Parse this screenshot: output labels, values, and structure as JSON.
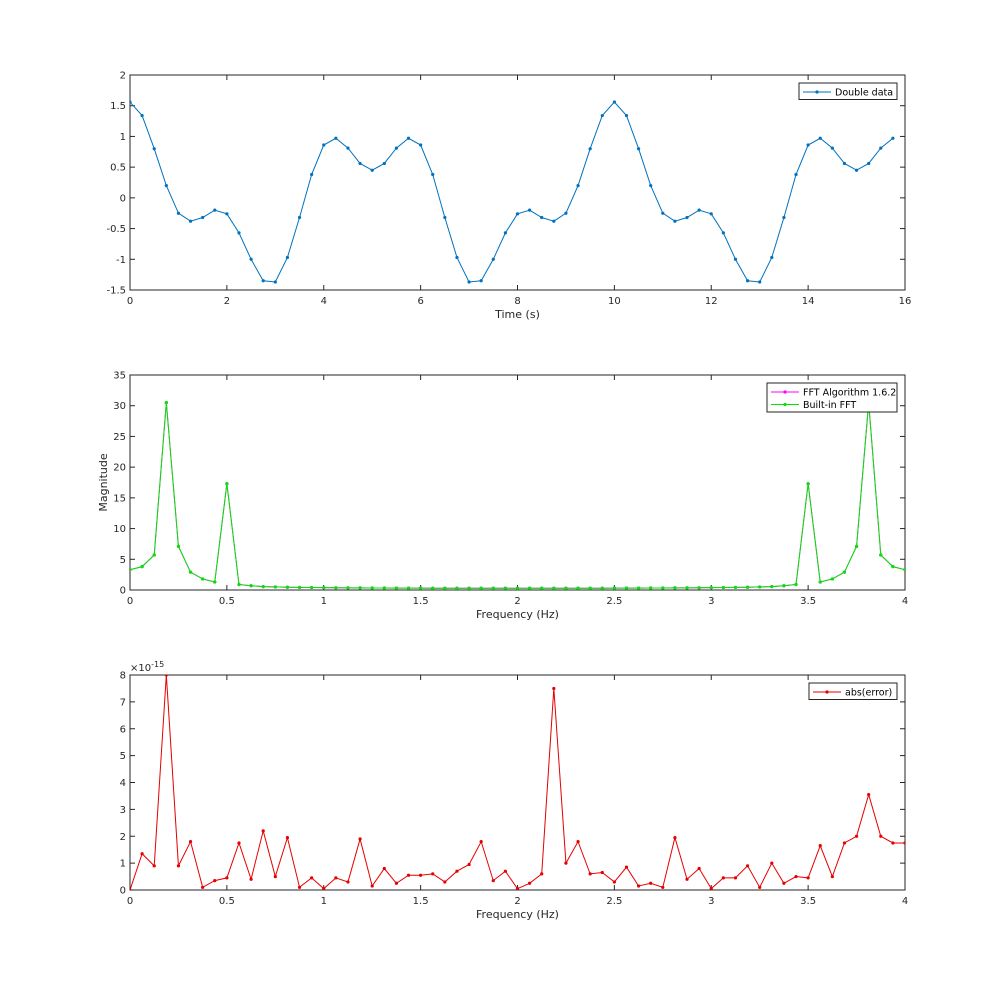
{
  "chart_data": [
    {
      "type": "line",
      "xlabel": "Time (s)",
      "ylabel": "",
      "xlim": [
        0,
        16
      ],
      "ylim": [
        -1.5,
        2
      ],
      "xticks": [
        0,
        2,
        4,
        6,
        8,
        10,
        12,
        14,
        16
      ],
      "xtick_labels": [
        "0",
        "2",
        "4",
        "6",
        "8",
        "10",
        "12",
        "14",
        "16"
      ],
      "yticks": [
        -1.5,
        -1,
        -0.5,
        0,
        0.5,
        1,
        1.5,
        2
      ],
      "ytick_labels": [
        "-1.5",
        "-1",
        "-0.5",
        "0",
        "0.5",
        "1",
        "1.5",
        "2"
      ],
      "legend_position": "top-right",
      "grid": false,
      "series": [
        {
          "name": "Double data",
          "color": "#0072BD",
          "x": [
            0,
            0.25,
            0.5,
            0.75,
            1,
            1.25,
            1.5,
            1.75,
            2,
            2.25,
            2.5,
            2.75,
            3,
            3.25,
            3.5,
            3.75,
            4,
            4.25,
            4.5,
            4.75,
            5,
            5.25,
            5.5,
            5.75,
            6,
            6.25,
            6.5,
            6.75,
            7,
            7.25,
            7.5,
            7.75,
            8,
            8.25,
            8.5,
            8.75,
            9,
            9.25,
            9.5,
            9.75,
            10,
            10.25,
            10.5,
            10.75,
            11,
            11.25,
            11.5,
            11.75,
            12,
            12.25,
            12.5,
            12.75,
            13,
            13.25,
            13.5,
            13.75,
            14,
            14.25,
            14.5,
            14.75,
            15,
            15.25,
            15.5,
            15.75
          ],
          "y": [
            1.56,
            1.34,
            0.8,
            0.2,
            -0.25,
            -0.38,
            -0.32,
            -0.2,
            -0.26,
            -0.57,
            -1.0,
            -1.35,
            -1.37,
            -0.97,
            -0.32,
            0.38,
            0.86,
            0.97,
            0.81,
            0.56,
            0.45,
            0.56,
            0.81,
            0.97,
            0.86,
            0.38,
            -0.32,
            -0.97,
            -1.37,
            -1.35,
            -1.0,
            -0.57,
            -0.26,
            -0.2,
            -0.32,
            -0.38,
            -0.25,
            0.2,
            0.8,
            1.34,
            1.56,
            1.34,
            0.8,
            0.2,
            -0.25,
            -0.38,
            -0.32,
            -0.2,
            -0.26,
            -0.57,
            -1.0,
            -1.35,
            -1.37,
            -0.97,
            -0.32,
            0.38,
            0.86,
            0.97,
            0.81,
            0.56,
            0.45,
            0.56,
            0.81,
            0.97
          ]
        }
      ]
    },
    {
      "type": "line",
      "xlabel": "Frequency (Hz)",
      "ylabel": "Magnitude",
      "xlim": [
        0,
        4
      ],
      "ylim": [
        0,
        35
      ],
      "xticks": [
        0,
        0.5,
        1,
        1.5,
        2,
        2.5,
        3,
        3.5,
        4
      ],
      "xtick_labels": [
        "0",
        "0.5",
        "1",
        "1.5",
        "2",
        "2.5",
        "3",
        "3.5",
        "4"
      ],
      "yticks": [
        0,
        5,
        10,
        15,
        20,
        25,
        30,
        35
      ],
      "ytick_labels": [
        "0",
        "5",
        "10",
        "15",
        "20",
        "25",
        "30",
        "35"
      ],
      "legend_position": "top-right",
      "grid": false,
      "series": [
        {
          "name": "FFT Algorithm 1.6.2",
          "color": "#FF00FF",
          "x": [
            0,
            0.0625,
            0.125,
            0.1875,
            0.25,
            0.3125,
            0.375,
            0.4375,
            0.5,
            0.5625,
            0.625,
            0.6875,
            0.75,
            0.8125,
            0.875,
            0.9375,
            1,
            1.0625,
            1.125,
            1.1875,
            1.25,
            1.3125,
            1.375,
            1.4375,
            1.5,
            1.5625,
            1.625,
            1.6875,
            1.75,
            1.8125,
            1.875,
            1.9375,
            2,
            2.0625,
            2.125,
            2.1875,
            2.25,
            2.3125,
            2.375,
            2.4375,
            2.5,
            2.5625,
            2.625,
            2.6875,
            2.75,
            2.8125,
            2.875,
            2.9375,
            3,
            3.0625,
            3.125,
            3.1875,
            3.25,
            3.3125,
            3.375,
            3.4375,
            3.5,
            3.5625,
            3.625,
            3.6875,
            3.75,
            3.8125,
            3.875,
            3.9375,
            4
          ],
          "y": [
            3.3,
            3.8,
            5.7,
            30.5,
            7.1,
            2.9,
            1.8,
            1.3,
            17.3,
            0.9,
            0.7,
            0.55,
            0.5,
            0.45,
            0.42,
            0.4,
            0.38,
            0.36,
            0.35,
            0.34,
            0.33,
            0.32,
            0.31,
            0.3,
            0.3,
            0.29,
            0.29,
            0.28,
            0.28,
            0.28,
            0.28,
            0.28,
            0.28,
            0.28,
            0.28,
            0.28,
            0.28,
            0.28,
            0.29,
            0.29,
            0.3,
            0.3,
            0.31,
            0.32,
            0.33,
            0.34,
            0.35,
            0.36,
            0.38,
            0.4,
            0.42,
            0.45,
            0.5,
            0.55,
            0.7,
            0.9,
            17.3,
            1.3,
            1.8,
            2.9,
            7.1,
            30.5,
            5.7,
            3.8,
            3.3
          ]
        },
        {
          "name": "Built-in FFT",
          "color": "#00E600",
          "x": [
            0,
            0.0625,
            0.125,
            0.1875,
            0.25,
            0.3125,
            0.375,
            0.4375,
            0.5,
            0.5625,
            0.625,
            0.6875,
            0.75,
            0.8125,
            0.875,
            0.9375,
            1,
            1.0625,
            1.125,
            1.1875,
            1.25,
            1.3125,
            1.375,
            1.4375,
            1.5,
            1.5625,
            1.625,
            1.6875,
            1.75,
            1.8125,
            1.875,
            1.9375,
            2,
            2.0625,
            2.125,
            2.1875,
            2.25,
            2.3125,
            2.375,
            2.4375,
            2.5,
            2.5625,
            2.625,
            2.6875,
            2.75,
            2.8125,
            2.875,
            2.9375,
            3,
            3.0625,
            3.125,
            3.1875,
            3.25,
            3.3125,
            3.375,
            3.4375,
            3.5,
            3.5625,
            3.625,
            3.6875,
            3.75,
            3.8125,
            3.875,
            3.9375,
            4
          ],
          "y": [
            3.3,
            3.8,
            5.7,
            30.5,
            7.1,
            2.9,
            1.8,
            1.3,
            17.3,
            0.9,
            0.7,
            0.55,
            0.5,
            0.45,
            0.42,
            0.4,
            0.38,
            0.36,
            0.35,
            0.34,
            0.33,
            0.32,
            0.31,
            0.3,
            0.3,
            0.29,
            0.29,
            0.28,
            0.28,
            0.28,
            0.28,
            0.28,
            0.28,
            0.28,
            0.28,
            0.28,
            0.28,
            0.28,
            0.29,
            0.29,
            0.3,
            0.3,
            0.31,
            0.32,
            0.33,
            0.34,
            0.35,
            0.36,
            0.38,
            0.4,
            0.42,
            0.45,
            0.5,
            0.55,
            0.7,
            0.9,
            17.3,
            1.3,
            1.8,
            2.9,
            7.1,
            30.5,
            5.7,
            3.8,
            3.3
          ]
        }
      ]
    },
    {
      "type": "line",
      "xlabel": "Frequency (Hz)",
      "ylabel": "",
      "xlim": [
        0,
        4
      ],
      "ylim": [
        0,
        8
      ],
      "y_exponent_label": "×10",
      "y_exponent_power": "-15",
      "xticks": [
        0,
        0.5,
        1,
        1.5,
        2,
        2.5,
        3,
        3.5,
        4
      ],
      "xtick_labels": [
        "0",
        "0.5",
        "1",
        "1.5",
        "2",
        "2.5",
        "3",
        "3.5",
        "4"
      ],
      "yticks": [
        0,
        1,
        2,
        3,
        4,
        5,
        6,
        7,
        8
      ],
      "ytick_labels": [
        "0",
        "1",
        "2",
        "3",
        "4",
        "5",
        "6",
        "7",
        "8"
      ],
      "legend_position": "top-right",
      "grid": false,
      "series": [
        {
          "name": "abs(error)",
          "color": "#E60000",
          "x": [
            0,
            0.0625,
            0.125,
            0.1875,
            0.25,
            0.3125,
            0.375,
            0.4375,
            0.5,
            0.5625,
            0.625,
            0.6875,
            0.75,
            0.8125,
            0.875,
            0.9375,
            1,
            1.0625,
            1.125,
            1.1875,
            1.25,
            1.3125,
            1.375,
            1.4375,
            1.5,
            1.5625,
            1.625,
            1.6875,
            1.75,
            1.8125,
            1.875,
            1.9375,
            2,
            2.0625,
            2.125,
            2.1875,
            2.25,
            2.3125,
            2.375,
            2.4375,
            2.5,
            2.5625,
            2.625,
            2.6875,
            2.75,
            2.8125,
            2.875,
            2.9375,
            3,
            3.0625,
            3.125,
            3.1875,
            3.25,
            3.3125,
            3.375,
            3.4375,
            3.5,
            3.5625,
            3.625,
            3.6875,
            3.75,
            3.8125,
            3.875,
            3.9375,
            4
          ],
          "y": [
            0,
            1.35,
            0.9,
            8.0,
            0.9,
            1.8,
            0.1,
            0.35,
            0.45,
            1.75,
            0.4,
            2.2,
            0.5,
            1.95,
            0.1,
            0.45,
            0.05,
            0.45,
            0.3,
            1.9,
            0.15,
            0.8,
            0.25,
            0.55,
            0.55,
            0.6,
            0.3,
            0.7,
            0.95,
            1.8,
            0.35,
            0.7,
            0.05,
            0.25,
            0.6,
            7.5,
            1.0,
            1.8,
            0.6,
            0.65,
            0.3,
            0.85,
            0.15,
            0.25,
            0.1,
            1.95,
            0.4,
            0.8,
            0.05,
            0.45,
            0.45,
            0.9,
            0.1,
            1.0,
            0.25,
            0.5,
            0.45,
            1.65,
            0.5,
            1.75,
            2.0,
            3.55,
            2.0,
            1.75,
            1.75
          ]
        }
      ]
    }
  ]
}
